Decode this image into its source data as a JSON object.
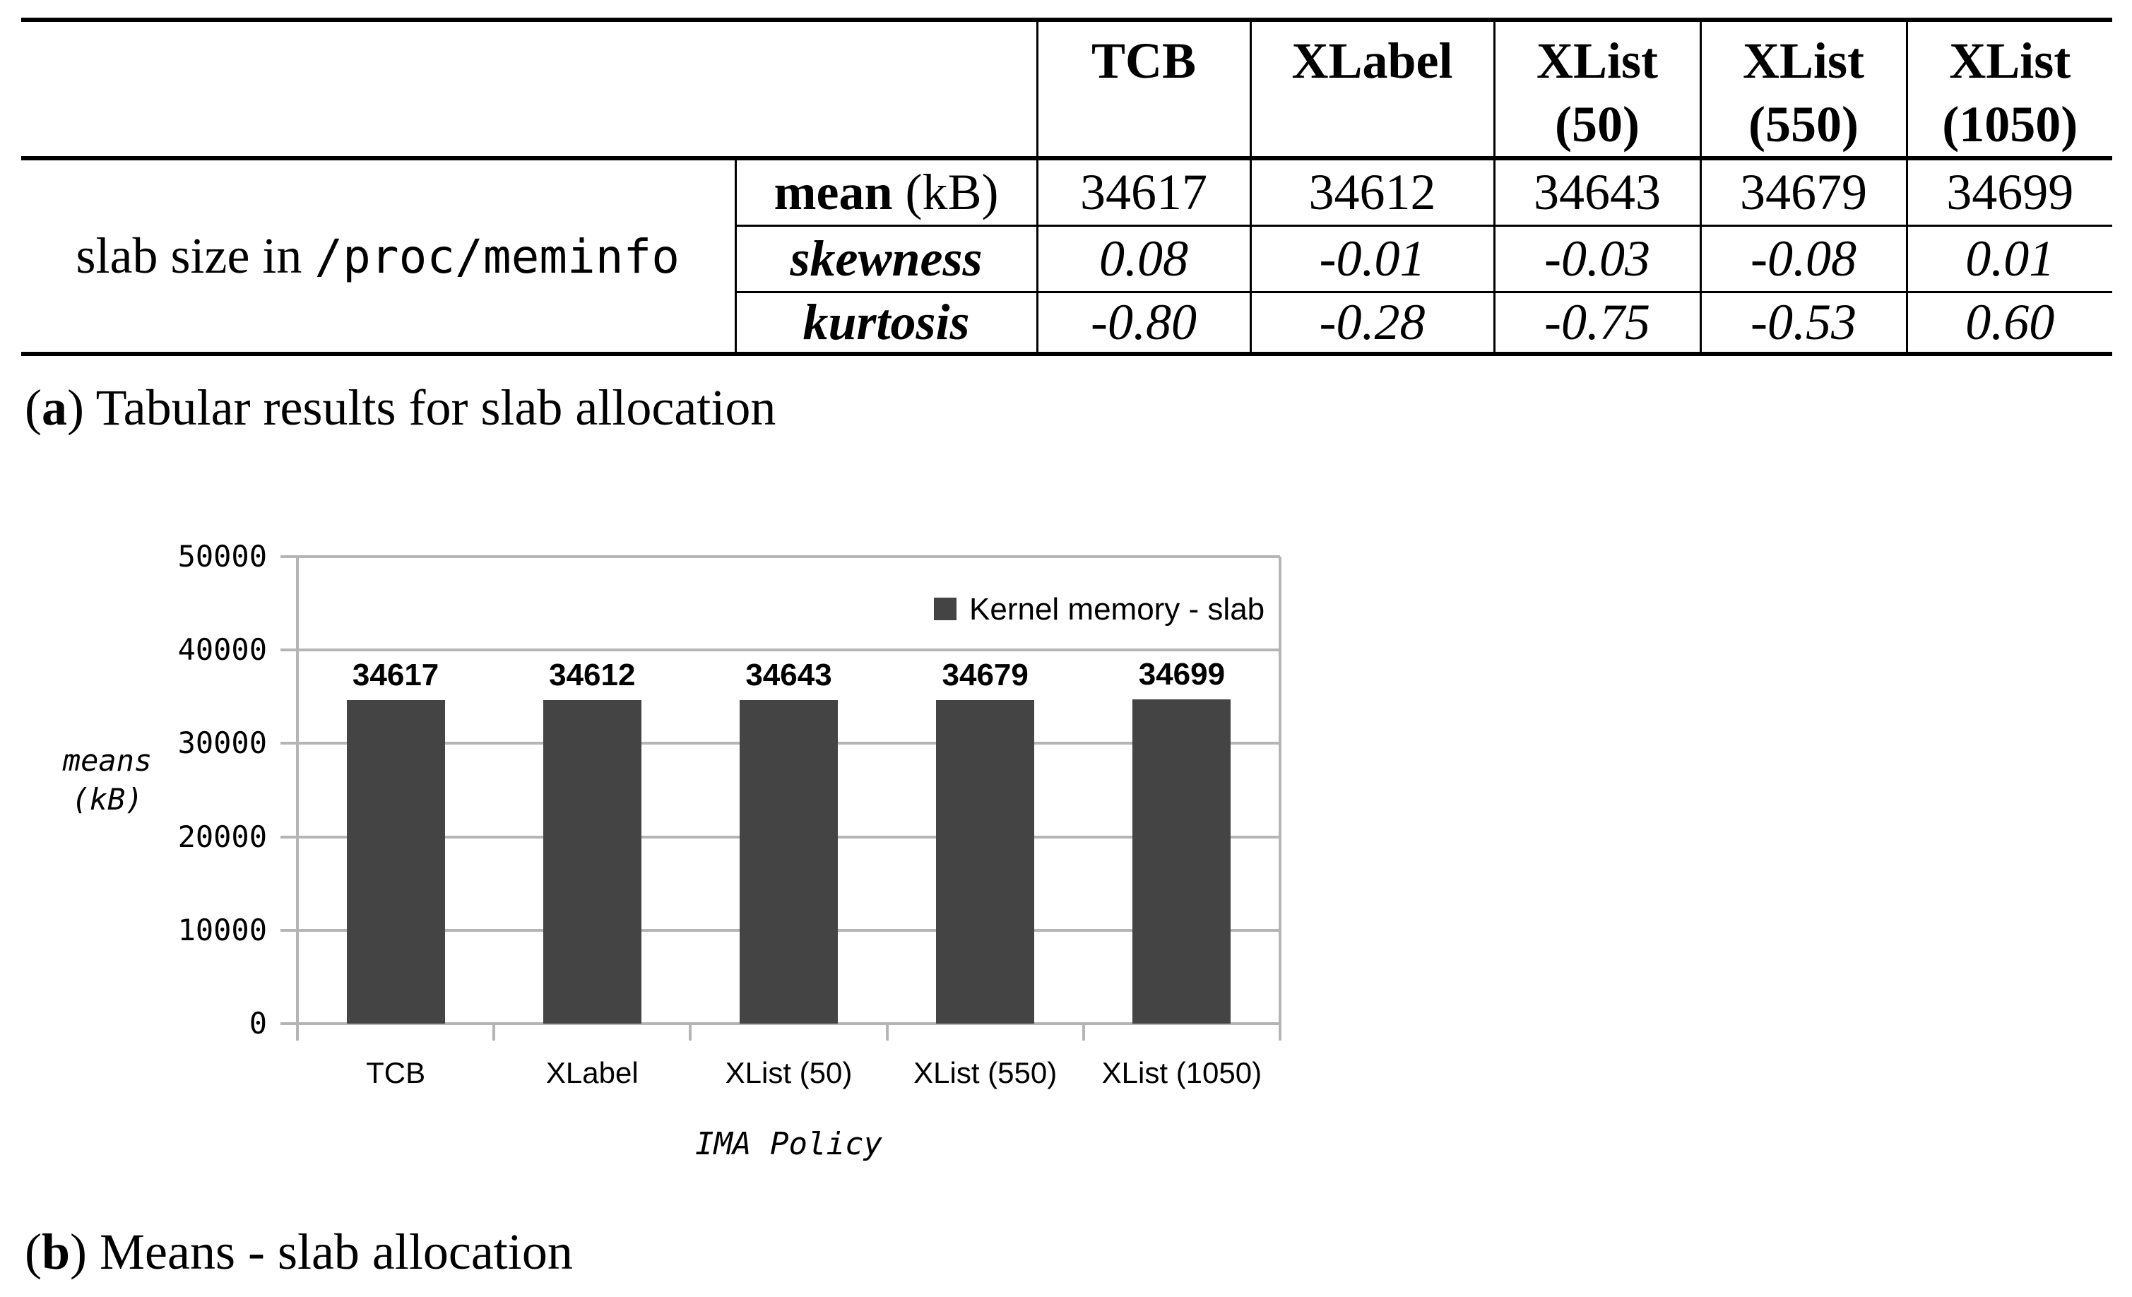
{
  "figure": {
    "table": {
      "col_headers": [
        "TCB",
        "XLabel",
        "XList (50)",
        "XList (550)",
        "XList (1050)"
      ],
      "row_group": {
        "label_serif": "slab size in ",
        "label_mono": "/proc/meminfo"
      },
      "rows": [
        {
          "label_bold": "mean",
          "label_rest": " (kB)",
          "values": [
            "34617",
            "34612",
            "34643",
            "34679",
            "34699"
          ]
        },
        {
          "label": "skewness",
          "values": [
            "0.08",
            "-0.01",
            "-0.03",
            "-0.08",
            "0.01"
          ]
        },
        {
          "label": "kurtosis",
          "values": [
            "-0.80",
            "-0.28",
            "-0.75",
            "-0.53",
            "0.60"
          ]
        }
      ]
    },
    "caption_a": {
      "open": "(",
      "letter": "a",
      "close": ")",
      "text": " Tabular results for slab allocation"
    },
    "caption_b": {
      "open": "(",
      "letter": "b",
      "close": ")",
      "text": " Means - slab allocation"
    }
  },
  "chart_data": {
    "type": "bar",
    "title": "",
    "categories": [
      "TCB",
      "XLabel",
      "XList (50)",
      "XList (550)",
      "XList (1050)"
    ],
    "series": [
      {
        "name": "Kernel memory - slab",
        "values": [
          34617,
          34612,
          34643,
          34679,
          34699
        ]
      }
    ],
    "value_labels": [
      "34617",
      "34612",
      "34643",
      "34679",
      "34699"
    ],
    "xlabel": "IMA Policy",
    "ylabel": "means (kB)",
    "ylabel_lines": [
      "means",
      "(kB)"
    ],
    "ylim": [
      0,
      50000
    ],
    "yticks": [
      {
        "value": 0,
        "label": "0"
      },
      {
        "value": 10000,
        "label": "10000"
      },
      {
        "value": 20000,
        "label": "20000"
      },
      {
        "value": 30000,
        "label": "30000"
      },
      {
        "value": 40000,
        "label": "40000"
      },
      {
        "value": 50000,
        "label": "50000"
      }
    ],
    "grid": true,
    "legend_position": "top-right",
    "colors": {
      "bar": "#444444",
      "grid": "#b5b5b5",
      "text": "#000000"
    }
  }
}
